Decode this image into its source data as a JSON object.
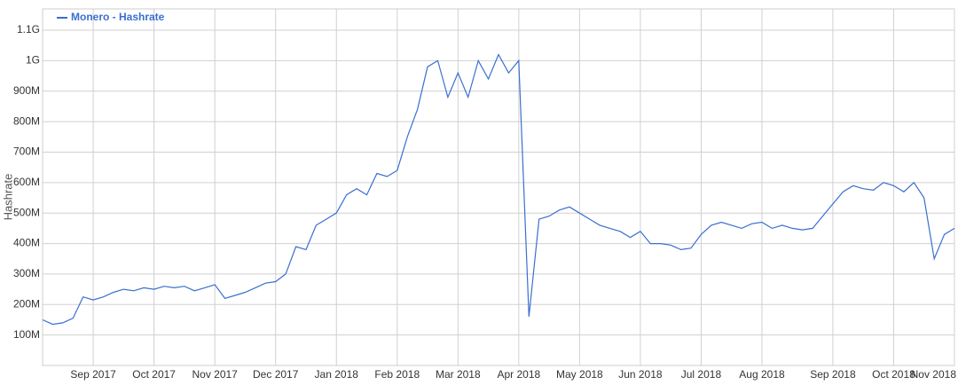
{
  "chart_data": {
    "type": "line",
    "y_label": "Hashrate",
    "legend": "top-left",
    "grid": true,
    "categories": [
      null,
      null,
      null,
      null,
      null,
      "Sep 2017",
      null,
      null,
      null,
      null,
      null,
      "Oct 2017",
      null,
      null,
      null,
      null,
      null,
      "Nov 2017",
      null,
      null,
      null,
      null,
      null,
      "Dec 2017",
      null,
      null,
      null,
      null,
      null,
      "Jan 2018",
      null,
      null,
      null,
      null,
      null,
      "Feb 2018",
      null,
      null,
      null,
      null,
      null,
      "Mar 2018",
      null,
      null,
      null,
      null,
      null,
      "Apr 2018",
      null,
      null,
      null,
      null,
      null,
      "May 2018",
      null,
      null,
      null,
      null,
      null,
      "Jun 2018",
      null,
      null,
      null,
      null,
      null,
      "Jul 2018",
      null,
      null,
      null,
      null,
      null,
      "Aug 2018",
      null,
      null,
      null,
      null,
      null,
      null,
      "Sep 2018",
      null,
      null,
      null,
      null,
      null,
      "Oct 2018",
      null,
      null,
      null,
      null,
      null,
      "Nov 2018"
    ],
    "series": [
      {
        "name": "Monero - Hashrate",
        "color": "#3a6fcf",
        "values": [
          150,
          135,
          140,
          155,
          225,
          215,
          225,
          240,
          250,
          245,
          255,
          250,
          260,
          255,
          260,
          245,
          255,
          265,
          220,
          230,
          240,
          255,
          270,
          275,
          300,
          390,
          380,
          460,
          480,
          500,
          560,
          580,
          560,
          630,
          620,
          640,
          750,
          840,
          980,
          1000,
          880,
          960,
          880,
          1000,
          940,
          1020,
          960,
          1000,
          160,
          480,
          490,
          510,
          520,
          500,
          480,
          460,
          450,
          440,
          420,
          440,
          400,
          400,
          395,
          380,
          385,
          430,
          460,
          470,
          460,
          450,
          465,
          470,
          450,
          460,
          450,
          445,
          450,
          490,
          530,
          570,
          590,
          580,
          575,
          600,
          590,
          570,
          600,
          550,
          350,
          430,
          450
        ]
      }
    ],
    "ylim": [
      0,
      1170
    ],
    "yticks": [
      {
        "value": 100,
        "label": "100M"
      },
      {
        "value": 200,
        "label": "200M"
      },
      {
        "value": 300,
        "label": "300M"
      },
      {
        "value": 400,
        "label": "400M"
      },
      {
        "value": 500,
        "label": "500M"
      },
      {
        "value": 600,
        "label": "600M"
      },
      {
        "value": 700,
        "label": "700M"
      },
      {
        "value": 800,
        "label": "800M"
      },
      {
        "value": 900,
        "label": "900M"
      },
      {
        "value": 1000,
        "label": "1G"
      },
      {
        "value": 1100,
        "label": "1.1G"
      }
    ]
  }
}
